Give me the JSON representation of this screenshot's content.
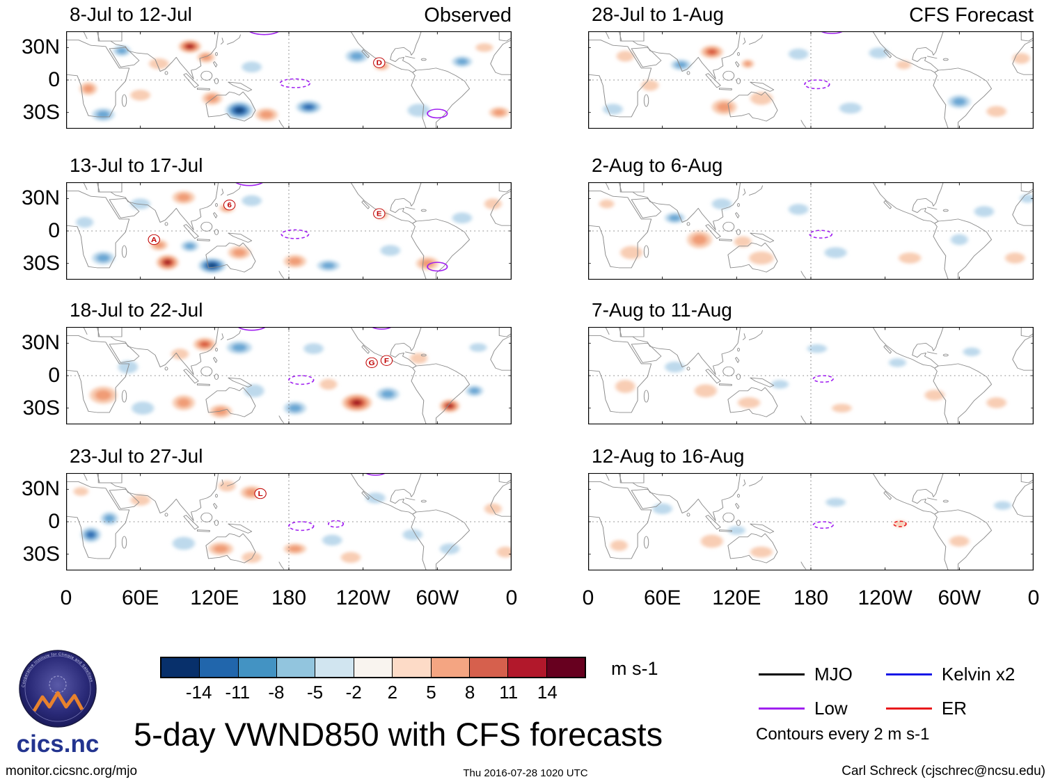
{
  "chart_data": {
    "type": "heatmap",
    "title": "5-day VWND850 with CFS forecasts",
    "columns": [
      {
        "header": "Observed"
      },
      {
        "header": "CFS Forecast"
      }
    ],
    "axes": {
      "x_ticks": [
        "0",
        "60E",
        "120E",
        "180",
        "120W",
        "60W",
        "0"
      ],
      "y_ticks": [
        "30N",
        "0",
        "30S"
      ],
      "lon_range": [
        0,
        360
      ],
      "lat_range": [
        45,
        -45
      ]
    },
    "colorbar": {
      "ticks": [
        "-14",
        "-11",
        "-8",
        "-5",
        "-2",
        "2",
        "5",
        "8",
        "11",
        "14"
      ],
      "colors": [
        "#08306b",
        "#2166ac",
        "#4393c3",
        "#92c5de",
        "#d1e5f0",
        "#f9f4ef",
        "#fddbc7",
        "#f4a582",
        "#d6604d",
        "#b2182b",
        "#67001f"
      ],
      "units": "m s-1"
    },
    "legend": {
      "items": [
        {
          "label": "MJO",
          "color": "#000000"
        },
        {
          "label": "Low",
          "color": "#a020f0"
        },
        {
          "label": "Kelvin x2",
          "color": "#1414e6"
        },
        {
          "label": "ER",
          "color": "#e8191c"
        }
      ],
      "note": "Contours every 2 m s-1"
    },
    "anomalies_schema": [
      "lon_deg_east",
      "lat_deg_north",
      "rx_deg",
      "ry_deg",
      "value_m_per_s"
    ],
    "contours_schema": [
      "lon_deg_east",
      "lat_deg_north",
      "rx_deg",
      "ry_deg",
      "wave_type_color",
      "dashed"
    ],
    "markers_schema": [
      "storm_label",
      "lon_deg_east",
      "lat_deg_north"
    ],
    "panels": [
      {
        "id": "obs-1",
        "column": "Observed",
        "title": "8-Jul to 12-Jul",
        "anomalies": [
          [
            100,
            31,
            9,
            6,
            14
          ],
          [
            113,
            21,
            7,
            5,
            6
          ],
          [
            75,
            15,
            8,
            5,
            3
          ],
          [
            45,
            27,
            7,
            5,
            -6
          ],
          [
            18,
            -8,
            7,
            6,
            6
          ],
          [
            30,
            -32,
            9,
            6,
            -6
          ],
          [
            140,
            -28,
            11,
            8,
            -14
          ],
          [
            118,
            -17,
            8,
            6,
            6
          ],
          [
            162,
            -32,
            9,
            6,
            6
          ],
          [
            150,
            12,
            8,
            5,
            -3
          ],
          [
            196,
            -25,
            10,
            6,
            -10
          ],
          [
            235,
            22,
            9,
            6,
            -6
          ],
          [
            255,
            13,
            6,
            4,
            6
          ],
          [
            285,
            -28,
            9,
            6,
            -3
          ],
          [
            320,
            17,
            8,
            5,
            -6
          ],
          [
            350,
            -30,
            8,
            5,
            6
          ],
          [
            60,
            -14,
            8,
            5,
            3
          ],
          [
            338,
            30,
            7,
            4,
            3
          ]
        ],
        "contours": [
          [
            160,
            47,
            13,
            5,
            "purple",
            0
          ],
          [
            185,
            -3,
            12,
            4,
            "purple",
            1
          ],
          [
            300,
            -31,
            8,
            4,
            "purple",
            0
          ]
        ],
        "markers": [
          [
            "D",
            253,
            16
          ]
        ]
      },
      {
        "id": "obs-2",
        "column": "Observed",
        "title": "13-Jul to 17-Jul",
        "anomalies": [
          [
            82,
            -29,
            9,
            7,
            15
          ],
          [
            75,
            -13,
            7,
            5,
            6
          ],
          [
            95,
            31,
            9,
            6,
            6
          ],
          [
            118,
            -32,
            11,
            7,
            -14
          ],
          [
            100,
            -14,
            7,
            5,
            -6
          ],
          [
            140,
            -20,
            9,
            6,
            6
          ],
          [
            60,
            25,
            8,
            5,
            -3
          ],
          [
            30,
            -25,
            9,
            6,
            -6
          ],
          [
            150,
            28,
            8,
            5,
            -3
          ],
          [
            130,
            21,
            6,
            4,
            6
          ],
          [
            185,
            -28,
            9,
            6,
            6
          ],
          [
            212,
            -32,
            9,
            5,
            -6
          ],
          [
            262,
            -18,
            8,
            5,
            -3
          ],
          [
            292,
            -30,
            9,
            6,
            6
          ],
          [
            320,
            12,
            8,
            5,
            -3
          ],
          [
            345,
            25,
            7,
            5,
            3
          ],
          [
            255,
            15,
            5,
            4,
            6
          ],
          [
            15,
            8,
            7,
            5,
            -3
          ]
        ],
        "contours": [
          [
            148,
            47,
            12,
            5,
            "purple",
            0
          ],
          [
            185,
            -3,
            11,
            4,
            "purple",
            1
          ],
          [
            300,
            -33,
            8,
            4,
            "purple",
            0
          ]
        ],
        "markers": [
          [
            "6",
            132,
            24
          ],
          [
            "E",
            253,
            16
          ],
          [
            "A",
            71,
            -8
          ]
        ]
      },
      {
        "id": "obs-3",
        "column": "Observed",
        "title": "18-Jul to 22-Jul",
        "anomalies": [
          [
            112,
            29,
            9,
            6,
            10
          ],
          [
            92,
            20,
            7,
            5,
            3
          ],
          [
            140,
            26,
            10,
            6,
            -6
          ],
          [
            50,
            8,
            8,
            6,
            -3
          ],
          [
            30,
            -18,
            11,
            8,
            6
          ],
          [
            62,
            -30,
            9,
            6,
            -3
          ],
          [
            95,
            -25,
            9,
            7,
            6
          ],
          [
            125,
            -33,
            9,
            6,
            6
          ],
          [
            152,
            -14,
            8,
            6,
            -3
          ],
          [
            185,
            -30,
            9,
            6,
            -6
          ],
          [
            235,
            -25,
            12,
            8,
            14
          ],
          [
            260,
            -17,
            9,
            6,
            -6
          ],
          [
            212,
            -8,
            7,
            5,
            3
          ],
          [
            310,
            -28,
            8,
            6,
            14
          ],
          [
            330,
            -14,
            7,
            5,
            -6
          ],
          [
            285,
            16,
            7,
            5,
            3
          ],
          [
            200,
            25,
            8,
            5,
            -3
          ],
          [
            333,
            26,
            7,
            4,
            -3
          ]
        ],
        "contours": [
          [
            150,
            47,
            12,
            5,
            "purple",
            0
          ],
          [
            255,
            47,
            9,
            4,
            "purple",
            0
          ],
          [
            190,
            -4,
            10,
            4,
            "purple",
            1
          ]
        ],
        "markers": [
          [
            "G",
            247,
            12
          ],
          [
            "F",
            259,
            14
          ]
        ]
      },
      {
        "id": "obs-4",
        "column": "Observed",
        "title": "23-Jul to 27-Jul",
        "anomalies": [
          [
            150,
            27,
            9,
            6,
            6
          ],
          [
            130,
            33,
            7,
            5,
            3
          ],
          [
            60,
            20,
            8,
            5,
            3
          ],
          [
            20,
            -12,
            8,
            7,
            -10
          ],
          [
            35,
            3,
            7,
            6,
            -6
          ],
          [
            95,
            -20,
            9,
            6,
            -3
          ],
          [
            125,
            -25,
            10,
            6,
            6
          ],
          [
            150,
            -33,
            8,
            5,
            3
          ],
          [
            185,
            -25,
            9,
            5,
            6
          ],
          [
            215,
            -17,
            8,
            5,
            -3
          ],
          [
            250,
            22,
            8,
            5,
            -3
          ],
          [
            280,
            -12,
            8,
            5,
            -3
          ],
          [
            310,
            -25,
            8,
            5,
            -3
          ],
          [
            345,
            12,
            7,
            5,
            3
          ],
          [
            355,
            -28,
            7,
            5,
            3
          ],
          [
            230,
            -33,
            8,
            5,
            3
          ],
          [
            12,
            28,
            6,
            4,
            3
          ]
        ],
        "contours": [
          [
            190,
            -4,
            10,
            4,
            "purple",
            1
          ],
          [
            218,
            -2,
            6,
            3,
            "purple",
            1
          ],
          [
            250,
            47,
            9,
            4,
            "purple",
            0
          ]
        ],
        "markers": [
          [
            "L",
            157,
            26
          ]
        ]
      },
      {
        "id": "fc-1",
        "column": "CFS Forecast",
        "title": "28-Jul to 1-Aug",
        "anomalies": [
          [
            100,
            26,
            9,
            6,
            10
          ],
          [
            75,
            14,
            8,
            5,
            -6
          ],
          [
            30,
            22,
            7,
            5,
            3
          ],
          [
            50,
            -5,
            7,
            5,
            3
          ],
          [
            110,
            -25,
            10,
            7,
            6
          ],
          [
            140,
            -17,
            9,
            6,
            3
          ],
          [
            170,
            24,
            8,
            5,
            -3
          ],
          [
            212,
            -26,
            9,
            5,
            -3
          ],
          [
            255,
            14,
            6,
            4,
            3
          ],
          [
            300,
            -20,
            9,
            6,
            -6
          ],
          [
            330,
            -29,
            8,
            5,
            3
          ],
          [
            20,
            -27,
            8,
            5,
            -3
          ],
          [
            350,
            20,
            7,
            5,
            3
          ],
          [
            235,
            25,
            8,
            5,
            -3
          ],
          [
            129,
            15,
            5,
            4,
            6
          ]
        ],
        "contours": [
          [
            197,
            47,
            10,
            4,
            "purple",
            0
          ],
          [
            185,
            -4,
            10,
            4,
            "purple",
            1
          ]
        ],
        "markers": []
      },
      {
        "id": "fc-2",
        "column": "CFS Forecast",
        "title": "2-Aug to 6-Aug",
        "anomalies": [
          [
            90,
            -8,
            10,
            8,
            6
          ],
          [
            70,
            12,
            8,
            5,
            -6
          ],
          [
            108,
            25,
            8,
            5,
            -3
          ],
          [
            35,
            -20,
            9,
            6,
            3
          ],
          [
            140,
            -25,
            10,
            6,
            3
          ],
          [
            170,
            20,
            8,
            5,
            -3
          ],
          [
            200,
            -20,
            9,
            5,
            -3
          ],
          [
            260,
            -25,
            9,
            5,
            3
          ],
          [
            320,
            18,
            8,
            5,
            -3
          ],
          [
            345,
            -25,
            8,
            5,
            3
          ],
          [
            300,
            -8,
            7,
            5,
            -3
          ],
          [
            125,
            -10,
            7,
            5,
            3
          ],
          [
            15,
            25,
            6,
            4,
            3
          ],
          [
            355,
            30,
            6,
            4,
            -3
          ]
        ],
        "contours": [
          [
            188,
            -3,
            9,
            3.5,
            "purple",
            1
          ]
        ],
        "markers": []
      },
      {
        "id": "fc-3",
        "column": "CFS Forecast",
        "title": "7-Aug to 11-Aug",
        "anomalies": [
          [
            95,
            -14,
            9,
            6,
            3
          ],
          [
            70,
            8,
            8,
            5,
            -3
          ],
          [
            130,
            -25,
            9,
            5,
            3
          ],
          [
            185,
            25,
            8,
            4,
            -3
          ],
          [
            280,
            -18,
            8,
            5,
            3
          ],
          [
            330,
            -25,
            8,
            5,
            3
          ],
          [
            250,
            12,
            7,
            4,
            -3
          ],
          [
            30,
            -10,
            8,
            6,
            3
          ],
          [
            155,
            -8,
            7,
            4,
            -3
          ],
          [
            310,
            22,
            7,
            4,
            -3
          ],
          [
            205,
            -30,
            8,
            4,
            3
          ]
        ],
        "contours": [
          [
            190,
            -3,
            8,
            3,
            "purple",
            1
          ]
        ],
        "markers": []
      },
      {
        "id": "fc-4",
        "column": "CFS Forecast",
        "title": "12-Aug to 16-Aug",
        "anomalies": [
          [
            100,
            -18,
            9,
            6,
            3
          ],
          [
            140,
            -28,
            9,
            5,
            3
          ],
          [
            60,
            12,
            8,
            5,
            -3
          ],
          [
            200,
            18,
            8,
            4,
            -3
          ],
          [
            300,
            -18,
            8,
            5,
            3
          ],
          [
            252,
            -2,
            5,
            3,
            3
          ],
          [
            25,
            -22,
            7,
            5,
            3
          ],
          [
            335,
            15,
            7,
            4,
            -3
          ],
          [
            120,
            -8,
            7,
            4,
            -3
          ]
        ],
        "contours": [
          [
            190,
            -3,
            8,
            3,
            "purple",
            1
          ],
          [
            252,
            -2,
            5,
            2.5,
            "red",
            1
          ]
        ],
        "markers": []
      }
    ]
  },
  "logo": {
    "name": "cics.nc",
    "ring_text": "Cooperative Institute for Climate and Satellites"
  },
  "footer": {
    "left": "monitor.cicsnc.org/mjo",
    "center": "Thu 2016-07-28 1020 UTC",
    "right": "Carl Schreck (cjschrec@ncsu.edu)"
  }
}
